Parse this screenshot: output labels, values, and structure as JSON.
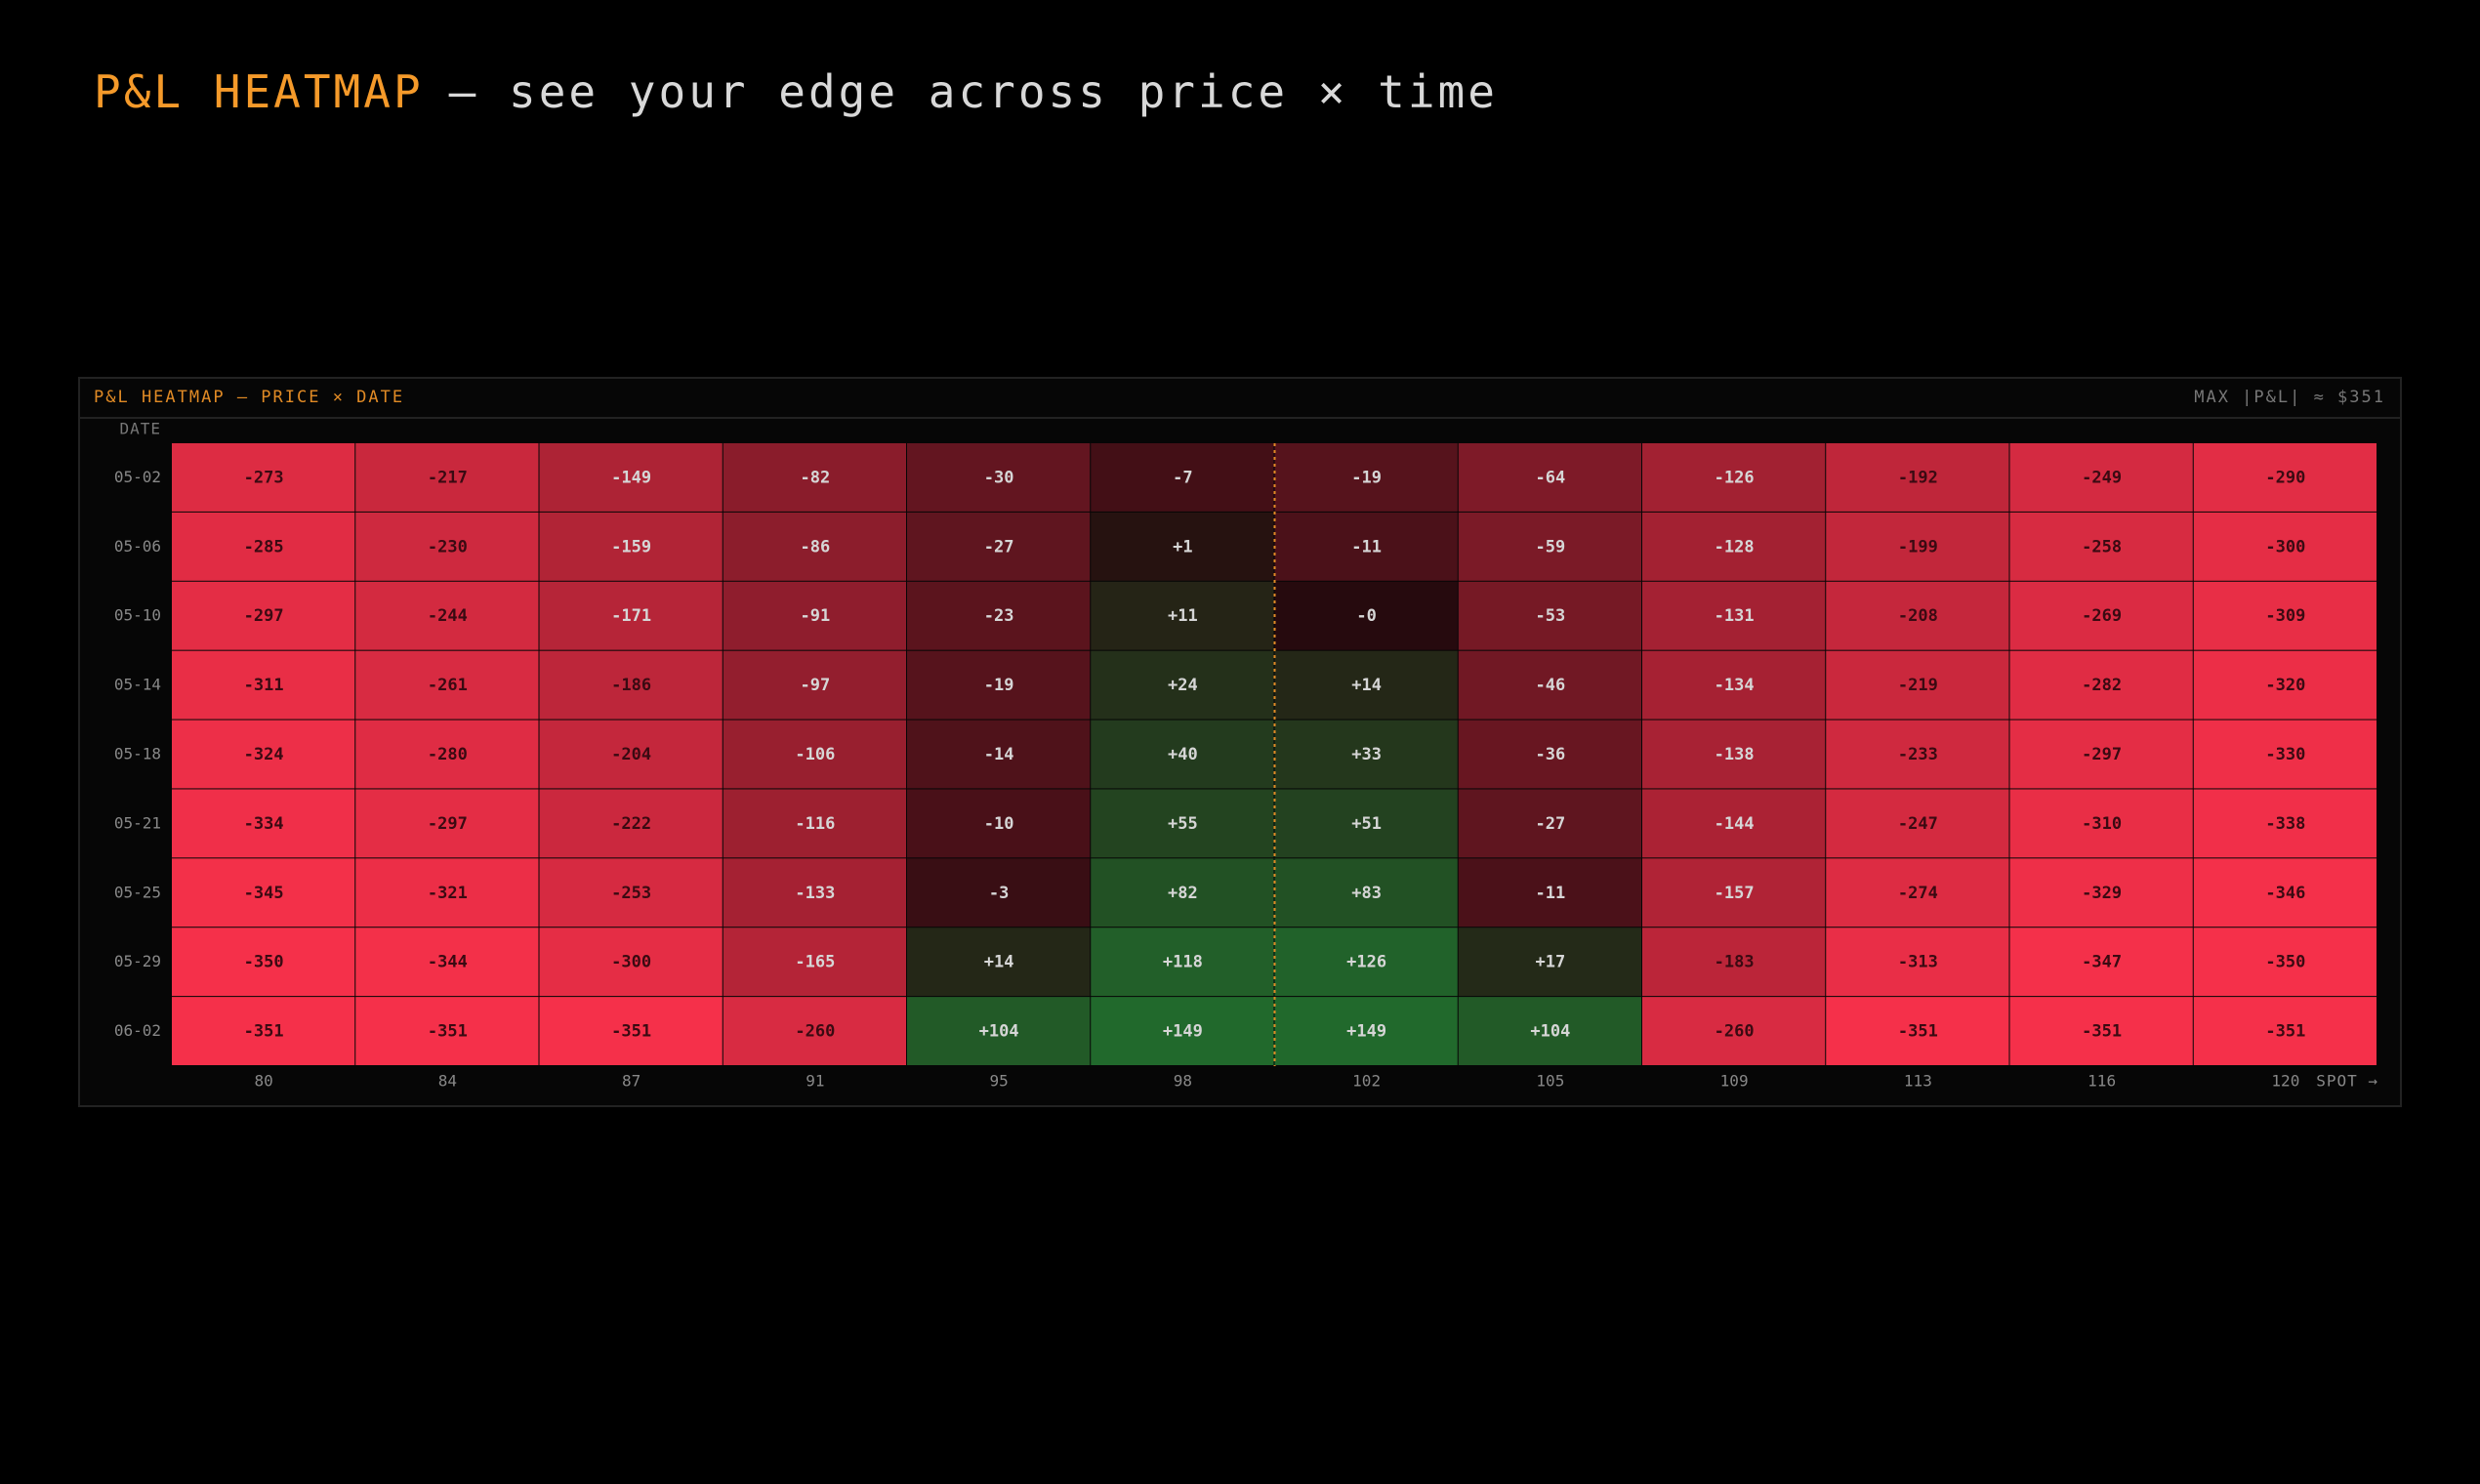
{
  "chart_data": {
    "type": "heatmap",
    "title": "P&L HEATMAP",
    "subtitle": "— see your edge across price × time",
    "panel_title": "P&L HEATMAP — PRICE × DATE",
    "max_label": "MAX |P&L| ≈ $351",
    "y_label": "DATE",
    "x_label": "SPOT →",
    "negative_color": "#f5304a",
    "positive_color": "#1f8f38",
    "neutral_color": "#260a0e",
    "categories": [
      "80",
      "84",
      "87",
      "91",
      "95",
      "98",
      "102",
      "105",
      "109",
      "113",
      "116",
      "120"
    ],
    "rows": [
      "05-02",
      "05-06",
      "05-10",
      "05-14",
      "05-18",
      "05-21",
      "05-25",
      "05-29",
      "06-02"
    ],
    "values": [
      [
        -273,
        -217,
        -149,
        -82,
        -30,
        -7,
        -19,
        -64,
        -126,
        -192,
        -249,
        -290
      ],
      [
        -285,
        -230,
        -159,
        -86,
        -27,
        1,
        -11,
        -59,
        -128,
        -199,
        -258,
        -300
      ],
      [
        -297,
        -244,
        -171,
        -91,
        -23,
        11,
        0,
        -53,
        -131,
        -208,
        -269,
        -309
      ],
      [
        -311,
        -261,
        -186,
        -97,
        -19,
        24,
        14,
        -46,
        -134,
        -219,
        -282,
        -320
      ],
      [
        -324,
        -280,
        -204,
        -106,
        -14,
        40,
        33,
        -36,
        -138,
        -233,
        -297,
        -330
      ],
      [
        -334,
        -297,
        -222,
        -116,
        -10,
        55,
        51,
        -27,
        -144,
        -247,
        -310,
        -338
      ],
      [
        -345,
        -321,
        -253,
        -133,
        -3,
        82,
        83,
        -11,
        -157,
        -274,
        -329,
        -346
      ],
      [
        -350,
        -344,
        -300,
        -165,
        14,
        118,
        126,
        17,
        -183,
        -313,
        -347,
        -350
      ],
      [
        -351,
        -351,
        -351,
        -260,
        104,
        149,
        149,
        104,
        -260,
        -351,
        -351,
        -351
      ]
    ],
    "value_labels": [
      [
        "-273",
        "-217",
        "-149",
        "-82",
        "-30",
        "-7",
        "-19",
        "-64",
        "-126",
        "-192",
        "-249",
        "-290"
      ],
      [
        "-285",
        "-230",
        "-159",
        "-86",
        "-27",
        "+1",
        "-11",
        "-59",
        "-128",
        "-199",
        "-258",
        "-300"
      ],
      [
        "-297",
        "-244",
        "-171",
        "-91",
        "-23",
        "+11",
        "-0",
        "-53",
        "-131",
        "-208",
        "-269",
        "-309"
      ],
      [
        "-311",
        "-261",
        "-186",
        "-97",
        "-19",
        "+24",
        "+14",
        "-46",
        "-134",
        "-219",
        "-282",
        "-320"
      ],
      [
        "-324",
        "-280",
        "-204",
        "-106",
        "-14",
        "+40",
        "+33",
        "-36",
        "-138",
        "-233",
        "-297",
        "-330"
      ],
      [
        "-334",
        "-297",
        "-222",
        "-116",
        "-10",
        "+55",
        "+51",
        "-27",
        "-144",
        "-247",
        "-310",
        "-338"
      ],
      [
        "-345",
        "-321",
        "-253",
        "-133",
        "-3",
        "+82",
        "+83",
        "-11",
        "-157",
        "-274",
        "-329",
        "-346"
      ],
      [
        "-350",
        "-344",
        "-300",
        "-165",
        "+14",
        "+118",
        "+126",
        "+17",
        "-183",
        "-313",
        "-347",
        "-350"
      ],
      [
        "-351",
        "-351",
        "-351",
        "-260",
        "+104",
        "+149",
        "+149",
        "+104",
        "-260",
        "-351",
        "-351",
        "-351"
      ]
    ]
  }
}
